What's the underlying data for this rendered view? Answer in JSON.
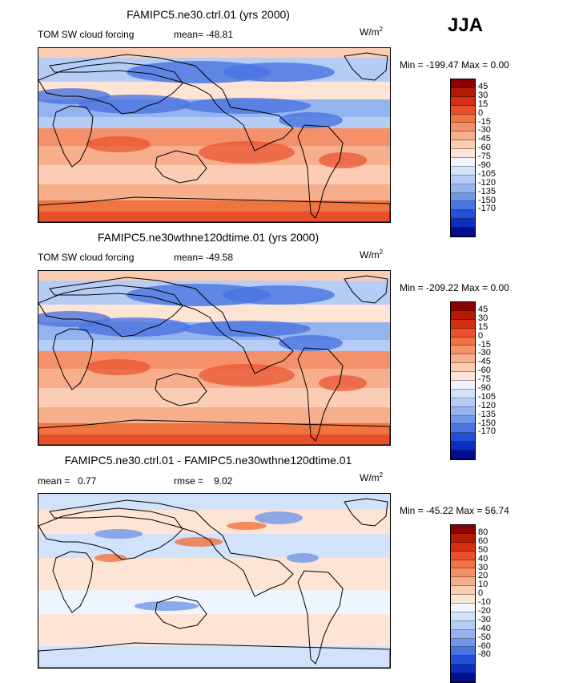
{
  "season": "JJA",
  "units_label": "W/m",
  "units_power": "2",
  "panels": [
    {
      "title": "FAMIPC5.ne30.ctrl.01 (yrs 2000)",
      "left_label": "TOM SW cloud forcing",
      "stat_label": "mean=",
      "stat_value": "-48.81",
      "min_label": "Min =",
      "min_value": "-199.47",
      "max_label": "Max =",
      "max_value": "0.00"
    },
    {
      "title": "FAMIPC5.ne30wthne120dtime.01 (yrs 2000)",
      "left_label": "TOM SW cloud forcing",
      "stat_label": "mean=",
      "stat_value": "-49.58",
      "min_label": "Min =",
      "min_value": "-209.22",
      "max_label": "Max =",
      "max_value": "0.00"
    },
    {
      "title": "FAMIPC5.ne30.ctrl.01 - FAMIPC5.ne30wthne120dtime.01",
      "mean_label": "mean =",
      "mean_value": "0.77",
      "rmse_label": "rmse =",
      "rmse_value": "9.02",
      "min_label": "Min =",
      "min_value": "-45.22",
      "max_label": "Max =",
      "max_value": "56.74"
    }
  ],
  "colorbar_colors": [
    "#8b0000",
    "#b41a00",
    "#d42f12",
    "#e8502c",
    "#f0743f",
    "#f4916a",
    "#f7ae8c",
    "#fbcdb4",
    "#fde4d4",
    "#eef5ff",
    "#d2e2fb",
    "#b5cdf5",
    "#95b4ef",
    "#7097e8",
    "#4a74e0",
    "#2350d5",
    "#0c2fbf",
    "#000e8f"
  ],
  "colorbar_ticks_main": [
    "45",
    "30",
    "15",
    "0",
    "-15",
    "-30",
    "-45",
    "-60",
    "-75",
    "-90",
    "-105",
    "-120",
    "-135",
    "-150",
    "-170"
  ],
  "colorbar_ticks_diff": [
    "80",
    "60",
    "50",
    "40",
    "30",
    "20",
    "10",
    "0",
    "-10",
    "-20",
    "-30",
    "-40",
    "-50",
    "-60",
    "-80"
  ],
  "chart_data": [
    {
      "type": "heatmap",
      "title": "FAMIPC5.ne30.ctrl.01 (yrs 2000)",
      "variable": "TOM SW cloud forcing",
      "season": "JJA",
      "units": "W/m2",
      "mean": -48.81,
      "min": -199.47,
      "max": 0.0,
      "levels": [
        45,
        30,
        15,
        0,
        -15,
        -30,
        -45,
        -60,
        -75,
        -90,
        -105,
        -120,
        -135,
        -150,
        -170
      ],
      "grid": false
    },
    {
      "type": "heatmap",
      "title": "FAMIPC5.ne30wthne120dtime.01 (yrs 2000)",
      "variable": "TOM SW cloud forcing",
      "season": "JJA",
      "units": "W/m2",
      "mean": -49.58,
      "min": -209.22,
      "max": 0.0,
      "levels": [
        45,
        30,
        15,
        0,
        -15,
        -30,
        -45,
        -60,
        -75,
        -90,
        -105,
        -120,
        -135,
        -150,
        -170
      ],
      "grid": false
    },
    {
      "type": "heatmap",
      "title": "FAMIPC5.ne30.ctrl.01 - FAMIPC5.ne30wthne120dtime.01",
      "units": "W/m2",
      "mean": 0.77,
      "rmse": 9.02,
      "min": -45.22,
      "max": 56.74,
      "levels": [
        80,
        60,
        50,
        40,
        30,
        20,
        10,
        0,
        -10,
        -20,
        -30,
        -40,
        -50,
        -60,
        -80
      ],
      "grid": false
    }
  ]
}
